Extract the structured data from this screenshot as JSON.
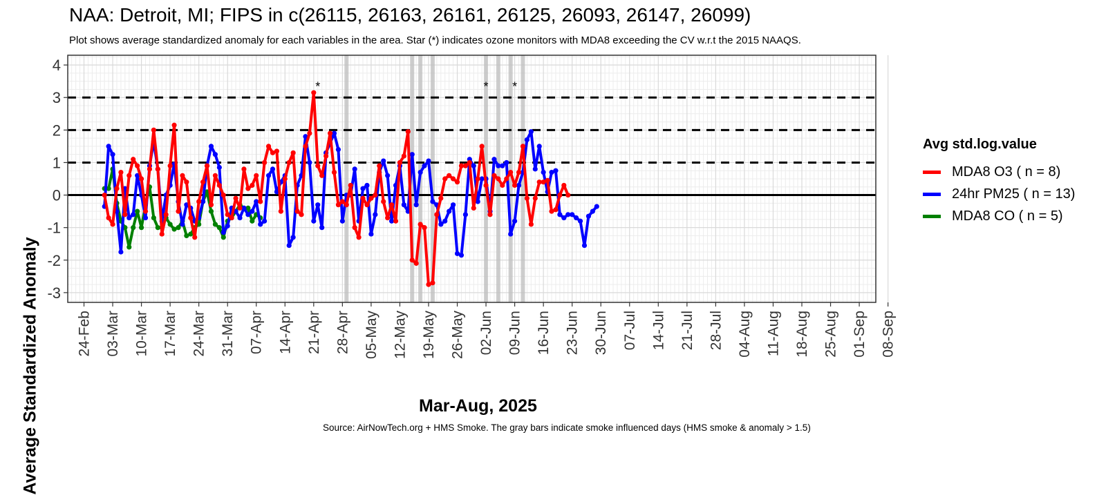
{
  "title": "NAA: Detroit, MI; FIPS in c(26115, 26163, 26161, 26125, 26093, 26147, 26099)",
  "subtitle": "Plot shows average standardized anomaly for each variables in the area. Star (*) indicates ozone monitors with MDA8 exceeding the CV w.r.t the 2015 NAAQS.",
  "caption": "Source: AirNowTech.org + HMS Smoke. The gray bars indicate smoke influenced days (HMS smoke & anomaly > 1.5)",
  "chart_data": {
    "type": "line",
    "xlabel": "Mar-Aug, 2025",
    "ylabel": "Average Standardized Anomaly",
    "x_start_date": "2025-02-24",
    "xlim_days": [
      -0.5,
      28.3
    ],
    "ylim": [
      -3.3,
      4.3
    ],
    "yticks": [
      -3,
      -2,
      -1,
      0,
      1,
      2,
      3,
      4
    ],
    "xtick_labels": [
      "24-Feb",
      "03-Mar",
      "10-Mar",
      "17-Mar",
      "24-Mar",
      "31-Mar",
      "07-Apr",
      "14-Apr",
      "21-Apr",
      "28-Apr",
      "05-May",
      "12-May",
      "19-May",
      "26-May",
      "02-Jun",
      "09-Jun",
      "16-Jun",
      "23-Jun",
      "30-Jun",
      "07-Jul",
      "14-Jul",
      "21-Jul",
      "28-Jul",
      "04-Aug",
      "11-Aug",
      "18-Aug",
      "25-Aug",
      "01-Sep",
      "08-Sep"
    ],
    "reference_lines": [
      {
        "y": 0,
        "style": "solid"
      },
      {
        "y": 1,
        "style": "dashed"
      },
      {
        "y": 2,
        "style": "dashed"
      },
      {
        "y": 3,
        "style": "dashed"
      }
    ],
    "smoke_days": [
      64,
      80,
      82,
      85,
      98,
      101,
      104,
      107
    ],
    "star_days": [
      57,
      98,
      105
    ],
    "star_label": "*",
    "legend_title": "Avg std.log.value",
    "series": [
      {
        "name": "MDA8 O3 ( n = 8)",
        "color": "#ff0000",
        "start_day": 5,
        "values": [
          0.0,
          -0.7,
          -0.9,
          0.2,
          0.7,
          -0.6,
          0.6,
          1.1,
          0.9,
          0.5,
          -0.5,
          0.8,
          2.0,
          0.8,
          -1.2,
          -0.6,
          0.9,
          2.15,
          -0.5,
          0.6,
          0.4,
          -0.7,
          -1.3,
          -0.2,
          0.4,
          0.9,
          -0.3,
          0.6,
          0.3,
          0.0,
          -0.6,
          -0.7,
          -0.1,
          -0.4,
          0.8,
          0.2,
          0.3,
          0.6,
          -0.2,
          1.0,
          1.5,
          1.3,
          1.35,
          -0.5,
          0.5,
          1.0,
          1.3,
          -0.5,
          -0.6,
          1.5,
          1.9,
          3.15,
          0.9,
          0.6,
          1.2,
          1.9,
          0.7,
          -0.3,
          -0.2,
          -0.3,
          0.3,
          -1.0,
          -1.3,
          -0.1,
          -0.3,
          -0.1,
          0.0,
          0.9,
          -0.2,
          -0.7,
          -0.3,
          -0.8,
          1.0,
          1.2,
          1.95,
          -2.0,
          -2.1,
          -0.9,
          -1.0,
          -2.75,
          -2.7,
          -0.6,
          -0.1,
          0.5,
          0.6,
          0.5,
          0.4,
          0.9,
          0.9,
          1.0,
          -0.4,
          0.5,
          1.5,
          0.3,
          -0.6,
          0.6,
          0.5,
          0.3,
          0.5,
          0.7,
          0.3,
          0.7,
          1.5,
          -0.1,
          -0.9,
          -0.1,
          0.4,
          0.4,
          0.45,
          -0.5,
          -0.45,
          0.0,
          0.3,
          0.0
        ]
      },
      {
        "name": "24hr PM25 ( n = 13)",
        "color": "#0000ff",
        "start_day": 5,
        "values": [
          -0.35,
          1.5,
          1.25,
          -0.5,
          -1.75,
          0.2,
          -0.7,
          -0.6,
          0.6,
          0.0,
          -0.7,
          0.9,
          1.65,
          0.8,
          -0.8,
          0.0,
          0.3,
          0.95,
          -0.2,
          -0.9,
          -0.3,
          -0.4,
          -0.8,
          -0.7,
          -0.2,
          0.9,
          1.5,
          1.25,
          0.85,
          -1.15,
          -0.95,
          -0.4,
          -0.5,
          -0.7,
          -0.4,
          -0.6,
          -0.5,
          -0.2,
          -0.9,
          -0.8,
          0.6,
          0.8,
          0.1,
          0.4,
          0.6,
          -1.55,
          -1.3,
          0.3,
          0.6,
          1.8,
          1.0,
          -0.8,
          -0.3,
          -1.0,
          1.3,
          1.6,
          1.9,
          1.4,
          -0.8,
          0.0,
          0.0,
          0.8,
          -0.8,
          0.2,
          0.3,
          -1.2,
          -0.6,
          0.7,
          1.05,
          0.6,
          -0.8,
          0.3,
          0.9,
          -0.3,
          -0.5,
          1.25,
          -0.3,
          0.7,
          0.9,
          1.05,
          -0.2,
          -0.3,
          -0.9,
          -0.8,
          -0.5,
          -0.3,
          -1.8,
          -1.85,
          -0.6,
          1.1,
          0.9,
          -0.2,
          0.5,
          0.5,
          -0.5,
          1.1,
          0.9,
          0.9,
          1.0,
          -1.2,
          -0.8,
          0.3,
          0.7,
          1.7,
          1.95,
          0.8,
          1.5,
          0.7,
          0.1,
          0.7,
          0.75,
          -0.6,
          -0.7,
          -0.6,
          -0.6,
          -0.7,
          -0.8,
          -1.55,
          -0.65,
          -0.5,
          -0.35
        ]
      },
      {
        "name": "MDA8 CO ( n = 5)",
        "color": "#008000",
        "start_day": 5,
        "values": [
          0.2,
          0.2,
          0.8,
          -0.25,
          -0.8,
          -1.0,
          -1.6,
          -1.0,
          -0.5,
          -1.0,
          -0.3,
          0.25,
          -0.7,
          -1.0,
          -1.0,
          -0.7,
          -0.9,
          -1.05,
          -1.0,
          -0.8,
          -1.25,
          -1.2,
          -1.0,
          -0.9,
          -0.2,
          0.1,
          -0.5,
          -0.9,
          -1.0,
          -1.3,
          -0.8,
          -0.7,
          -0.5,
          -0.3,
          -0.4,
          -0.4,
          -0.8,
          -0.6,
          -0.7
        ]
      }
    ]
  }
}
